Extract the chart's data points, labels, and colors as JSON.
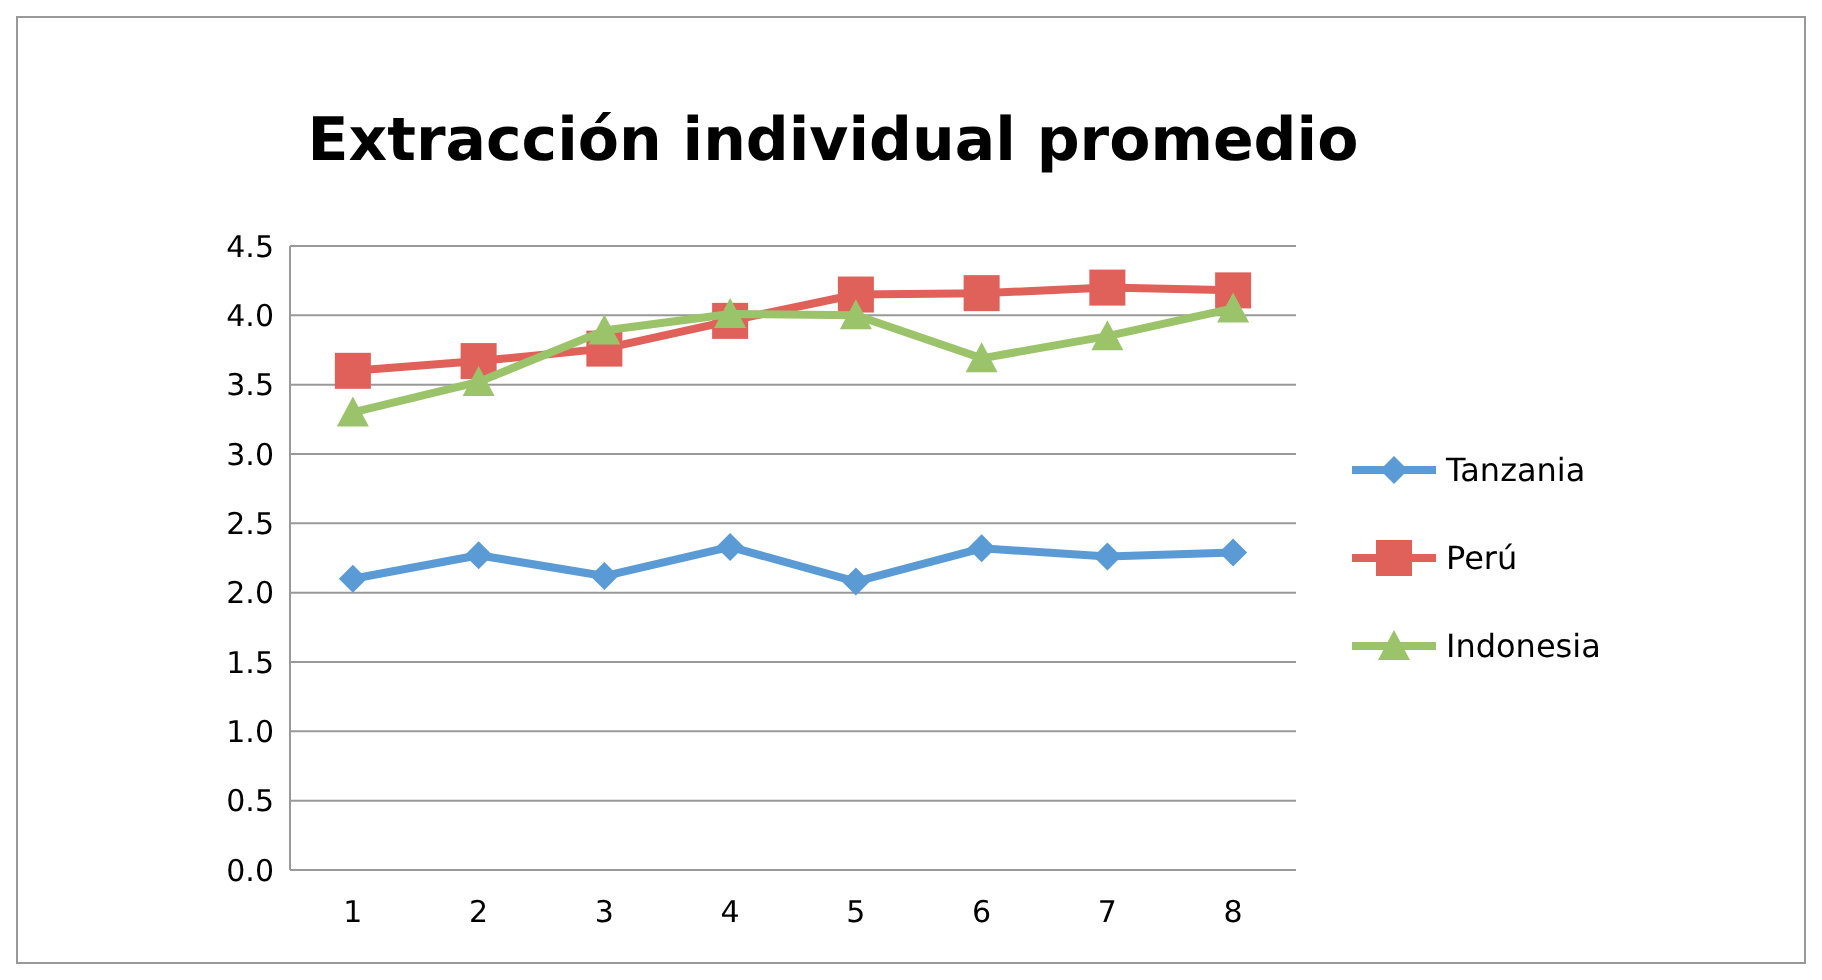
{
  "chart_data": {
    "type": "line",
    "title": "Extracción individual promedio",
    "categories": [
      "1",
      "2",
      "3",
      "4",
      "5",
      "6",
      "7",
      "8"
    ],
    "series": [
      {
        "name": "Tanzania",
        "color": "#5b9bd5",
        "marker": "diamond",
        "values": [
          2.1,
          2.27,
          2.12,
          2.33,
          2.08,
          2.32,
          2.26,
          2.29
        ]
      },
      {
        "name": "Perú",
        "color": "#e0605a",
        "marker": "square",
        "values": [
          3.6,
          3.67,
          3.76,
          3.96,
          4.15,
          4.16,
          4.2,
          4.18
        ]
      },
      {
        "name": "Indonesia",
        "color": "#9bc46a",
        "marker": "triangle",
        "values": [
          3.3,
          3.52,
          3.89,
          4.01,
          4.0,
          3.69,
          3.85,
          4.05
        ]
      }
    ],
    "ylim": [
      0,
      4.5
    ],
    "yticks": [
      {
        "value": 0,
        "label": "0.0"
      },
      {
        "value": 0.5,
        "label": "0.5"
      },
      {
        "value": 1,
        "label": "1.0"
      },
      {
        "value": 1.5,
        "label": "1.5"
      },
      {
        "value": 2,
        "label": "2.0"
      },
      {
        "value": 2.5,
        "label": "2.5"
      },
      {
        "value": 3,
        "label": "3.0"
      },
      {
        "value": 3.5,
        "label": "3.5"
      },
      {
        "value": 4,
        "label": "4.0"
      },
      {
        "value": 4.5,
        "label": "4.5"
      }
    ],
    "grid": "y",
    "legend": "right"
  }
}
